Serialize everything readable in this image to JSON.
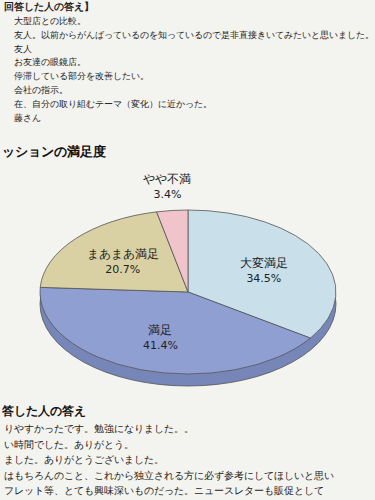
{
  "chart_data": {
    "type": "pie",
    "title": "ッションの満足度",
    "categories": [
      "大変満足",
      "満足",
      "まあまあ満足",
      "やや不満"
    ],
    "values": [
      34.5,
      41.4,
      20.7,
      3.4
    ],
    "value_labels": [
      "34.5%",
      "41.4%",
      "20.7%",
      "3.4%"
    ],
    "colors": [
      "#c9dfea",
      "#8f9fd2",
      "#d9d1a4",
      "#f1c3cb"
    ],
    "data_labels": true
  },
  "document": {
    "top_heading": "回答した人の答え】",
    "top_lines": [
      "大型店との比較。",
      "友人。以前からがんばっているのを知っているので是非直接きいてみたいと思いました。",
      "友人",
      "お友達の眼鏡店。",
      "停滞している部分を改善したい。",
      "会社の指示。",
      "在、自分の取り組むテーマ（変化）に近かった。",
      "藤さん"
    ],
    "bottom_heading": "答した人の答え",
    "bottom_lines": [
      "りやすかったです。勉強になりました。。",
      "い時間でした。ありがとう。",
      "ました。ありがとうございました。",
      "はもちろんのこと、これから独立される方に必ず参考にしてほしいと思い",
      "フレット等、とても興味深いものだった。ニュースレターも販促として"
    ]
  }
}
